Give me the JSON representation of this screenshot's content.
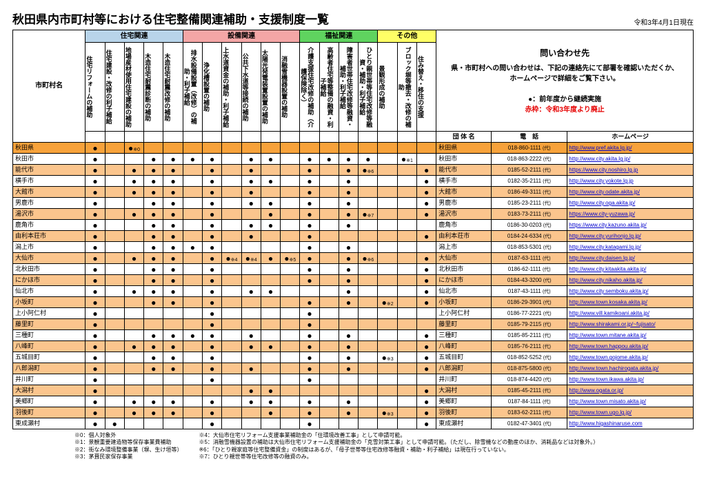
{
  "title": "秋田県内市町村等における住宅整備関連補助・支援制度一覧",
  "dateNote": "令和3年4月1日現在",
  "rowHeader": "市町村名",
  "groups": [
    {
      "label": "住宅関連",
      "span": 5,
      "cls": "bg-blue"
    },
    {
      "label": "設備関連",
      "span": 6,
      "cls": "bg-pink"
    },
    {
      "label": "福祉関連",
      "span": 4,
      "cls": "bg-green"
    },
    {
      "label": "その他",
      "span": 3,
      "cls": "bg-yellow"
    }
  ],
  "cols": [
    "住宅リフォームの補助",
    "住宅建設・改修の利子補給",
    "地場産材使用住宅建設の補助",
    "木造住宅耐震診断の補助",
    "木造住宅耐震改修の補助",
    "排水設備設置（改修）の補助・利子補給",
    "浄化槽設置の補助",
    "上水道資金の補助・利子補給",
    "公共下水道等接続の補助",
    "太陽光発電装置設置の補助",
    "消融雪機器設置の補助",
    "介護支援住宅改修の補助（介護保険除く）",
    "高齢者住宅等整備の融資・利子補給",
    "障害者世帯住宅改修等融資・補助・利子補給",
    "ひとり親世帯等住宅改修等融資・補助・利子補給",
    "景観形成の補助",
    "ブロック塀等撤去・改修の補助",
    "住み替え・移住の支援"
  ],
  "info": {
    "title": "問い合わせ先",
    "l1": "県・市町村への問い合わせは、下記の連絡先にて部署を確認いただくか、",
    "l2": "ホームページで詳細をご覧下さい。",
    "l3": "●：前年度から継続実施",
    "l4": "赤枠：令和3年度より廃止"
  },
  "subhdr": {
    "org": "団 体 名",
    "tel": "電　話",
    "hp": "ホームページ"
  },
  "rows": [
    {
      "n": "秋田県",
      "m": [
        "●",
        "",
        "●※0",
        "",
        "",
        "",
        "",
        "",
        "",
        "",
        "",
        "",
        "",
        "",
        "",
        "",
        "",
        ""
      ],
      "org": "秋田県",
      "tel": "018-860-1111",
      "hp": "http://www.pref.akita.lg.jp/",
      "pref": 1
    },
    {
      "n": "秋田市",
      "m": [
        "●",
        "",
        "",
        "●",
        "●",
        "●",
        "●",
        "",
        "●",
        "●",
        "",
        "●",
        "●",
        "●",
        "●",
        "",
        "●※1",
        ""
      ],
      "org": "秋田市",
      "tel": "018-863-2222",
      "hp": "http://www.city.akita.lg.jp/",
      "alt": 0
    },
    {
      "n": "能代市",
      "m": [
        "●",
        "",
        "●",
        "●",
        "●",
        "",
        "●",
        "",
        "●",
        "",
        "",
        "●",
        "",
        "●",
        "●※6",
        "",
        "",
        "●"
      ],
      "org": "能代市",
      "tel": "0185-52-2111",
      "hp": "https://www.city.noshiro.lg.jp",
      "alt": 1
    },
    {
      "n": "横手市",
      "m": [
        "●",
        "",
        "●",
        "●",
        "●",
        "",
        "●",
        "",
        "●",
        "●",
        "",
        "●",
        "",
        "●",
        "",
        "",
        "",
        "●"
      ],
      "org": "横手市",
      "tel": "0182-35-2111",
      "hp": "http://www.city.yokote.lg.jp",
      "alt": 0
    },
    {
      "n": "大館市",
      "m": [
        "●",
        "",
        "●",
        "●",
        "●",
        "",
        "●",
        "",
        "●",
        "",
        "",
        "●",
        "",
        "●",
        "",
        "",
        "",
        "●"
      ],
      "org": "大館市",
      "tel": "0186-49-3111",
      "hp": "http://www.city.odate.akita.jp/",
      "alt": 1
    },
    {
      "n": "男鹿市",
      "m": [
        "●",
        "",
        "",
        "●",
        "●",
        "",
        "●",
        "",
        "●",
        "●",
        "",
        "●",
        "",
        "●",
        "",
        "",
        "",
        "●"
      ],
      "org": "男鹿市",
      "tel": "0185-23-2111",
      "hp": "http://www.city.oga.akita.jp/",
      "alt": 0
    },
    {
      "n": "湯沢市",
      "m": [
        "●",
        "",
        "●",
        "●",
        "●",
        "",
        "●",
        "",
        "",
        "●",
        "",
        "●",
        "",
        "●",
        "●※7",
        "",
        "",
        "●"
      ],
      "org": "湯沢市",
      "tel": "0183-73-2111",
      "hp": "https://www.city-yuzawa.jp/",
      "alt": 1
    },
    {
      "n": "鹿角市",
      "m": [
        "●",
        "",
        "",
        "●",
        "●",
        "",
        "●",
        "",
        "●",
        "●",
        "",
        "●",
        "",
        "●",
        "",
        "",
        "",
        ""
      ],
      "org": "鹿角市",
      "tel": "0186-30-0203",
      "hp": "https://www.city.kazuno.akita.jp/",
      "alt": 0
    },
    {
      "n": "由利本荘市",
      "m": [
        "●",
        "",
        "",
        "●",
        "●",
        "",
        "●",
        "",
        "●",
        "",
        "",
        "●",
        "",
        "",
        "",
        "",
        "",
        "●"
      ],
      "org": "由利本荘市",
      "tel": "0184-24-6334",
      "hp": "http://www.city.yurihonjo.lg.jp/",
      "alt": 1
    },
    {
      "n": "潟上市",
      "m": [
        "●",
        "",
        "",
        "●",
        "●",
        "●",
        "●",
        "",
        "",
        "",
        "",
        "●",
        "",
        "●",
        "",
        "",
        "",
        ""
      ],
      "org": "潟上市",
      "tel": "018-853-5301",
      "hp": "http://www.city.katagami.lg.jp/",
      "alt": 0
    },
    {
      "n": "大仙市",
      "m": [
        "●",
        "",
        "●",
        "●",
        "●",
        "",
        "●",
        "●※4",
        "●※4",
        "●",
        "●※5",
        "●",
        "",
        "●",
        "●※6",
        "",
        "",
        "●"
      ],
      "org": "大仙市",
      "tel": "0187-63-1111",
      "hp": "http://www.city.daisen.lg.jp/",
      "alt": 1
    },
    {
      "n": "北秋田市",
      "m": [
        "●",
        "",
        "",
        "●",
        "●",
        "",
        "●",
        "",
        "",
        "",
        "",
        "●",
        "",
        "●",
        "",
        "",
        "",
        "●"
      ],
      "org": "北秋田市",
      "tel": "0186-62-1111",
      "hp": "http://www.city.kitaakita.akita.jp/",
      "alt": 0
    },
    {
      "n": "にかほ市",
      "m": [
        "●",
        "",
        "",
        "●",
        "●",
        "",
        "●",
        "",
        "R",
        "",
        "",
        "●",
        "",
        "●",
        "",
        "",
        "",
        "●"
      ],
      "org": "にかほ市",
      "tel": "0184-43-3200",
      "hp": "http://www.city.nikaho.akita.jp/",
      "alt": 1
    },
    {
      "n": "仙北市",
      "m": [
        "●",
        "",
        "●",
        "●",
        "●",
        "",
        "●",
        "",
        "●",
        "●",
        "",
        "",
        "",
        "●",
        "",
        "",
        "",
        "●"
      ],
      "org": "仙北市",
      "tel": "0187-43-1111",
      "hp": "http://www.city.semboku.akita.jp/",
      "alt": 0
    },
    {
      "n": "小坂町",
      "m": [
        "●",
        "",
        "",
        "●",
        "●",
        "",
        "●",
        "",
        "",
        "",
        "",
        "●",
        "",
        "●",
        "",
        "●※2",
        "",
        "●"
      ],
      "org": "小坂町",
      "tel": "0186-29-3901",
      "hp": "http://www.town.kosaka.akita.jp/",
      "alt": 1
    },
    {
      "n": "上小阿仁村",
      "m": [
        "●",
        "",
        "",
        "",
        "",
        "",
        "●",
        "",
        "",
        "",
        "",
        "●",
        "",
        "",
        "",
        "",
        "",
        ""
      ],
      "org": "上小阿仁村",
      "tel": "0186-77-2221",
      "hp": "http://www.vill.kamikoani.akita.jp/",
      "alt": 0
    },
    {
      "n": "藤里町",
      "m": [
        "●",
        "",
        "",
        "",
        "",
        "",
        "●",
        "",
        "",
        "",
        "",
        "●",
        "",
        "",
        "",
        "",
        "",
        ""
      ],
      "org": "藤里町",
      "tel": "0185-79-2115",
      "hp": "http://www.shirakami.or.jp/~fujisato/",
      "alt": 1
    },
    {
      "n": "三種町",
      "m": [
        "●",
        "",
        "",
        "●",
        "●",
        "●",
        "●",
        "",
        "●",
        "",
        "",
        "●",
        "",
        "●",
        "",
        "",
        "",
        "●"
      ],
      "org": "三種町",
      "tel": "0185-85-2111",
      "hp": "http://www.town.mitane.akita.jp/",
      "alt": 0
    },
    {
      "n": "八峰町",
      "m": [
        "●",
        "",
        "●",
        "●",
        "●",
        "",
        "●",
        "",
        "●",
        "●",
        "",
        "●",
        "",
        "●",
        "",
        "",
        "",
        "●"
      ],
      "org": "八峰町",
      "tel": "0185-76-2111",
      "hp": "http://www.town.happou.akita.jp/",
      "alt": 1
    },
    {
      "n": "五城目町",
      "m": [
        "●",
        "",
        "",
        "●",
        "●",
        "",
        "●",
        "",
        "",
        "",
        "",
        "●",
        "",
        "●",
        "",
        "●※3",
        "",
        "●"
      ],
      "org": "五城目町",
      "tel": "018-852-5252",
      "hp": "http://www.town.gojome.akita.jp/",
      "alt": 0
    },
    {
      "n": "八郎潟町",
      "m": [
        "●",
        "",
        "",
        "●",
        "●",
        "",
        "●",
        "",
        "●",
        "",
        "",
        "●",
        "",
        "●",
        "",
        "",
        "",
        "●"
      ],
      "org": "八郎潟町",
      "tel": "018-875-5800",
      "hp": "http://www.town.hachirogata.akita.jp/",
      "alt": 1
    },
    {
      "n": "井川町",
      "m": [
        "●",
        "",
        "",
        "",
        "",
        "",
        "●",
        "",
        "",
        "",
        "",
        "●",
        "",
        "",
        "",
        "",
        "",
        ""
      ],
      "org": "井川町",
      "tel": "018-874-4420",
      "hp": "http://www.town.ikawa.akita.jp/",
      "alt": 0
    },
    {
      "n": "大潟村",
      "m": [
        "●",
        "",
        "",
        "",
        "",
        "",
        "",
        "",
        "●",
        "●",
        "",
        "",
        "",
        "",
        "",
        "",
        "",
        "●"
      ],
      "org": "大潟村",
      "tel": "0185-45-2111",
      "hp": "http://www.ogata.or.jp/",
      "alt": 1
    },
    {
      "n": "美郷町",
      "m": [
        "●",
        "",
        "●",
        "●",
        "●",
        "",
        "●",
        "",
        "●",
        "●",
        "",
        "●",
        "",
        "●",
        "",
        "",
        "",
        "●"
      ],
      "org": "美郷町",
      "tel": "0187-84-1111",
      "hp": "http://www.town.misato.akita.jp/",
      "alt": 0
    },
    {
      "n": "羽後町",
      "m": [
        "●",
        "",
        "●",
        "●",
        "●",
        "",
        "●",
        "",
        "",
        "●",
        "",
        "●",
        "",
        "●",
        "",
        "●※3",
        "",
        "●"
      ],
      "org": "羽後町",
      "tel": "0183-62-2111",
      "hp": "http://www.town.ugo.lg.jp/",
      "alt": 1
    },
    {
      "n": "東成瀬村",
      "m": [
        "●",
        "●",
        "",
        "",
        "",
        "",
        "●",
        "",
        "",
        "",
        "",
        "●",
        "",
        "",
        "",
        "",
        "",
        "●"
      ],
      "org": "東成瀬村",
      "tel": "0182-47-3401",
      "hp": "http://www.higashinaruse.com",
      "alt": 0
    }
  ],
  "footL": "※0：個人対象外\n※1：景観重要建造物等保存事業費補助\n※2：街なみ環境整備事業（塀、生け垣等）\n※3：茅葺民家保存事業",
  "footR": "※4：大仙市住宅リフォーム支援事業補助金の「住環境改善工事」として申請可能。\n※5：消融雪機器設置の補助は大仙市住宅リフォーム支援補助金の「克雪対策工事」として申請可能。（ただし、除雪機などの動産のほか、消耗品などは対象外。）\n※6：「ひとり親家庭等住宅整備資金」の制度はあるが、「母子世帯等住宅改修等融資・補助・利子補給」は現在行っていない。\n※7：ひとり親世帯等住宅改修等の融資のみ。"
}
